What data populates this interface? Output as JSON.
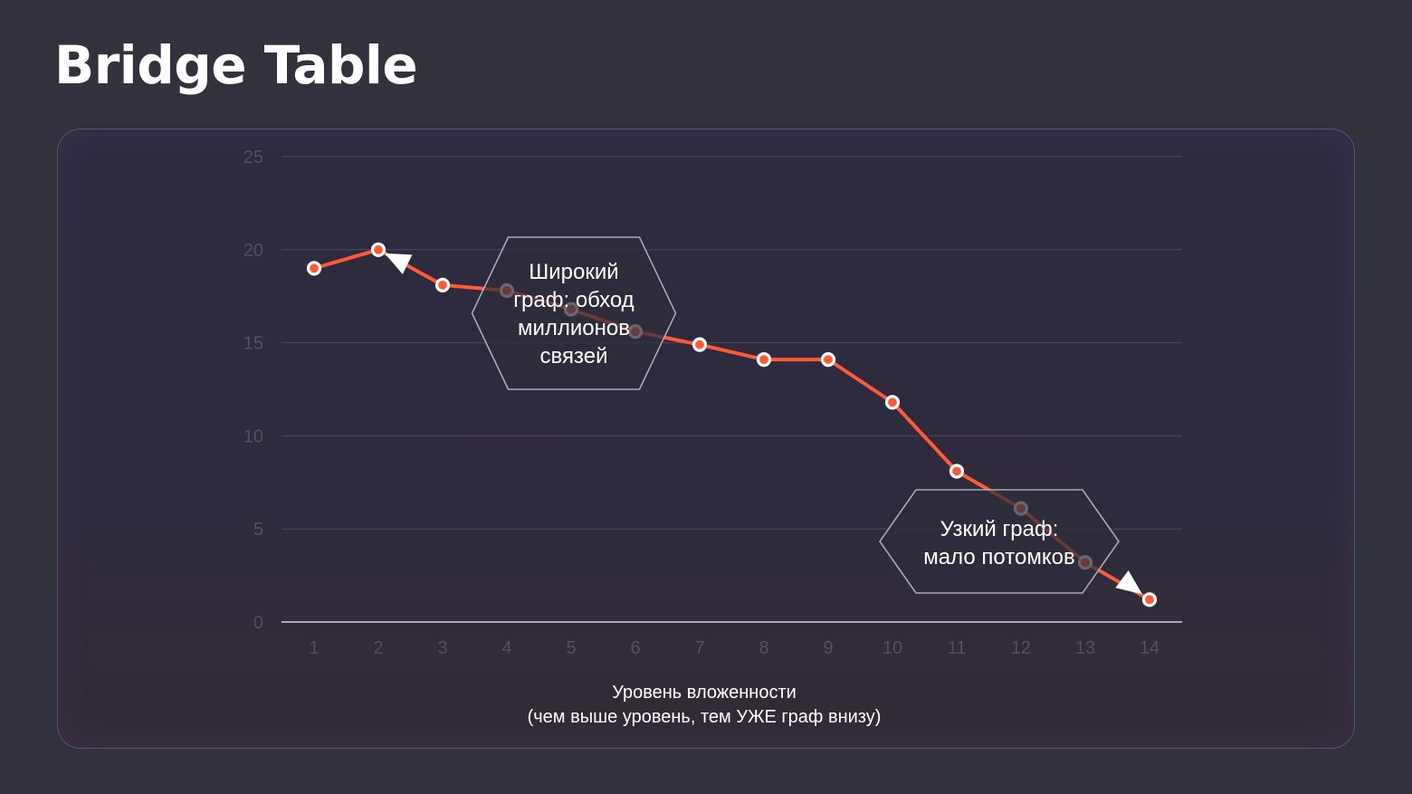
{
  "title": "Bridge Table",
  "chart_data": {
    "type": "line",
    "x": [
      1,
      2,
      3,
      4,
      5,
      6,
      7,
      8,
      9,
      10,
      11,
      12,
      13,
      14
    ],
    "series": [
      {
        "values": [
          19.0,
          20.0,
          18.1,
          17.8,
          16.8,
          15.6,
          14.9,
          14.1,
          14.1,
          11.8,
          8.1,
          6.1,
          3.2,
          1.2
        ]
      }
    ],
    "ylim": [
      0,
      25
    ],
    "yticks": [
      "0",
      "5",
      "10",
      "15",
      "20",
      "25"
    ],
    "xticks": [
      "1",
      "2",
      "3",
      "4",
      "5",
      "6",
      "7",
      "8",
      "9",
      "10",
      "11",
      "12",
      "13",
      "14"
    ],
    "xlabel_lines": [
      "Уровень вложенности",
      "(чем выше уровень, тем УЖЕ граф внизу)"
    ],
    "ylabel": "",
    "grid": true,
    "line_color": "#ff5a36",
    "annotations": [
      {
        "lines": [
          "Широкий",
          "граф: обход",
          "миллионов",
          "связей"
        ],
        "points_to_x": 2
      },
      {
        "lines": [
          "Узкий граф:",
          "мало потомков"
        ],
        "points_to_x": 14
      }
    ]
  }
}
